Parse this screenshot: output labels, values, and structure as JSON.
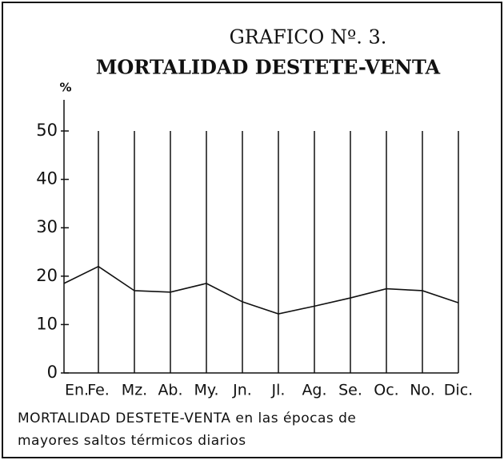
{
  "chart_data": {
    "type": "line",
    "title": "GRAFICO Nº. 3.",
    "subtitle": "MORTALIDAD DESTETE-VENTA",
    "y_label": "%",
    "caption": [
      "MORTALIDAD DESTETE-VENTA en las épocas de",
      "mayores saltos térmicos diarios"
    ],
    "categories": [
      "En.",
      "Fe.",
      "Mz.",
      "Ab.",
      "My.",
      "Jn.",
      "Jl.",
      "Ag.",
      "Se.",
      "Oc.",
      "No.",
      "Dic."
    ],
    "values": [
      18.5,
      22,
      17,
      16.7,
      18.5,
      14.7,
      12.2,
      13.8,
      15.5,
      17.4,
      17,
      14.5
    ],
    "color": "#111111",
    "ylim": [
      0,
      50
    ],
    "yticks": [
      0,
      10,
      20,
      30,
      40,
      50
    ],
    "grid": true
  }
}
